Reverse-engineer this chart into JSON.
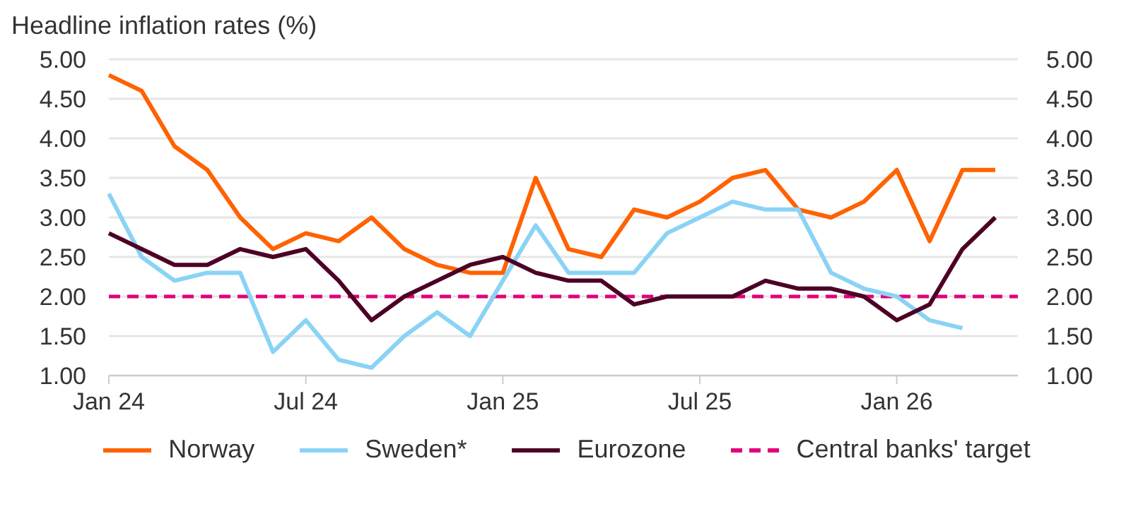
{
  "chart_data": {
    "type": "line",
    "title": "Headline inflation rates (%)",
    "categories": [
      "Jan 24",
      null,
      null,
      null,
      null,
      null,
      "Jul 24",
      null,
      null,
      null,
      null,
      null,
      "Jan 25",
      null,
      null,
      null,
      null,
      null,
      "Jul 25",
      null,
      null,
      null,
      null,
      null,
      "Jan 26",
      null,
      null,
      null
    ],
    "series": [
      {
        "name": "Norway",
        "color": "#ff6200",
        "values": [
          4.8,
          4.6,
          3.9,
          3.6,
          3.0,
          2.6,
          2.8,
          2.7,
          3.0,
          2.6,
          2.4,
          2.3,
          2.3,
          3.5,
          2.6,
          2.5,
          3.1,
          3.0,
          3.2,
          3.5,
          3.6,
          3.1,
          3.0,
          3.2,
          3.6,
          2.7,
          3.6,
          3.6
        ]
      },
      {
        "name": "Sweden*",
        "color": "#8ad3f5",
        "values": [
          3.3,
          2.5,
          2.2,
          2.3,
          2.3,
          1.3,
          1.7,
          1.2,
          1.1,
          1.5,
          1.8,
          1.5,
          2.2,
          2.9,
          2.3,
          2.3,
          2.3,
          2.8,
          3.0,
          3.2,
          3.1,
          3.1,
          2.3,
          2.1,
          2.0,
          1.7,
          1.6,
          null
        ]
      },
      {
        "name": "Eurozone",
        "color": "#4d0026",
        "values": [
          2.8,
          2.6,
          2.4,
          2.4,
          2.6,
          2.5,
          2.6,
          2.2,
          1.7,
          2.0,
          2.2,
          2.4,
          2.5,
          2.3,
          2.2,
          2.2,
          1.9,
          2.0,
          2.0,
          2.0,
          2.2,
          2.1,
          2.1,
          2.0,
          1.7,
          1.9,
          2.6,
          3.0
        ]
      }
    ],
    "ref_lines": [
      {
        "axis": "y",
        "value": 2.0,
        "label": "Central banks' target",
        "color": "#e2007a",
        "line_style": "dashed"
      }
    ],
    "ylim": [
      1,
      5
    ],
    "yticks": [
      {
        "value": 1,
        "label": "1.00"
      },
      {
        "value": 1.5,
        "label": "1.50"
      },
      {
        "value": 2,
        "label": "2.00"
      },
      {
        "value": 2.5,
        "label": "2.50"
      },
      {
        "value": 3,
        "label": "3.00"
      },
      {
        "value": 3.5,
        "label": "3.50"
      },
      {
        "value": 4,
        "label": "4.00"
      },
      {
        "value": 4.5,
        "label": "4.50"
      },
      {
        "value": 5,
        "label": "5.00"
      }
    ],
    "y2lim": [
      1,
      5
    ],
    "y2ticks": [
      {
        "value": 1,
        "label": "1.00"
      },
      {
        "value": 1.5,
        "label": "1.50"
      },
      {
        "value": 2,
        "label": "2.00"
      },
      {
        "value": 2.5,
        "label": "2.50"
      },
      {
        "value": 3,
        "label": "3.00"
      },
      {
        "value": 3.5,
        "label": "3.50"
      },
      {
        "value": 4,
        "label": "4.00"
      },
      {
        "value": 4.5,
        "label": "4.50"
      },
      {
        "value": 5,
        "label": "5.00"
      }
    ],
    "grid": "y",
    "legend": "bottom",
    "marker": "none",
    "line_style": "solid"
  }
}
